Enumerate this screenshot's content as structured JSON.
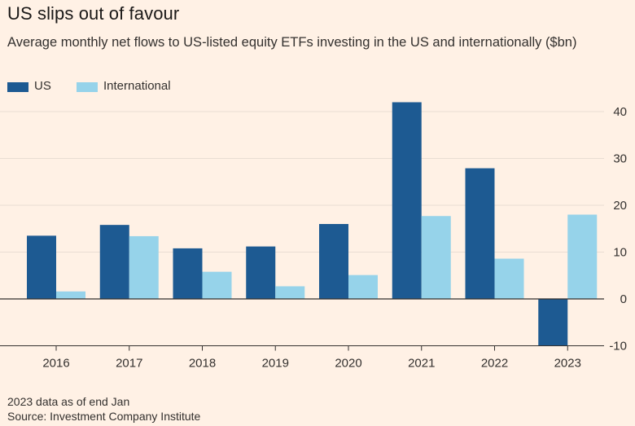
{
  "title": "US slips out of favour",
  "subtitle": "Average monthly net flows to US-listed equity ETFs investing in the US and internationally ($bn)",
  "legend": {
    "us": "US",
    "international": "International"
  },
  "footnote": {
    "note": "2023 data as of end Jan",
    "source": "Source: Investment Company Institute"
  },
  "colors": {
    "background": "#fff1e5",
    "us": "#1d5a92",
    "international": "#96d3ea",
    "grid": "#e9ddd3",
    "zero_line": "#33302e"
  },
  "chart_data": {
    "type": "bar",
    "categories": [
      "2016",
      "2017",
      "2018",
      "2019",
      "2020",
      "2021",
      "2022",
      "2023"
    ],
    "series": [
      {
        "name": "US",
        "values": [
          13.5,
          15.8,
          10.8,
          11.2,
          16.0,
          42.0,
          27.9,
          -10.0
        ]
      },
      {
        "name": "International",
        "values": [
          1.6,
          13.4,
          5.8,
          2.7,
          5.1,
          17.7,
          8.6,
          18.0
        ]
      }
    ],
    "ylim": [
      -10,
      45
    ],
    "yticks": [
      -10,
      0,
      10,
      20,
      30,
      40
    ],
    "y_axis_position": "right",
    "grid": true,
    "legend_position": "top-left"
  }
}
